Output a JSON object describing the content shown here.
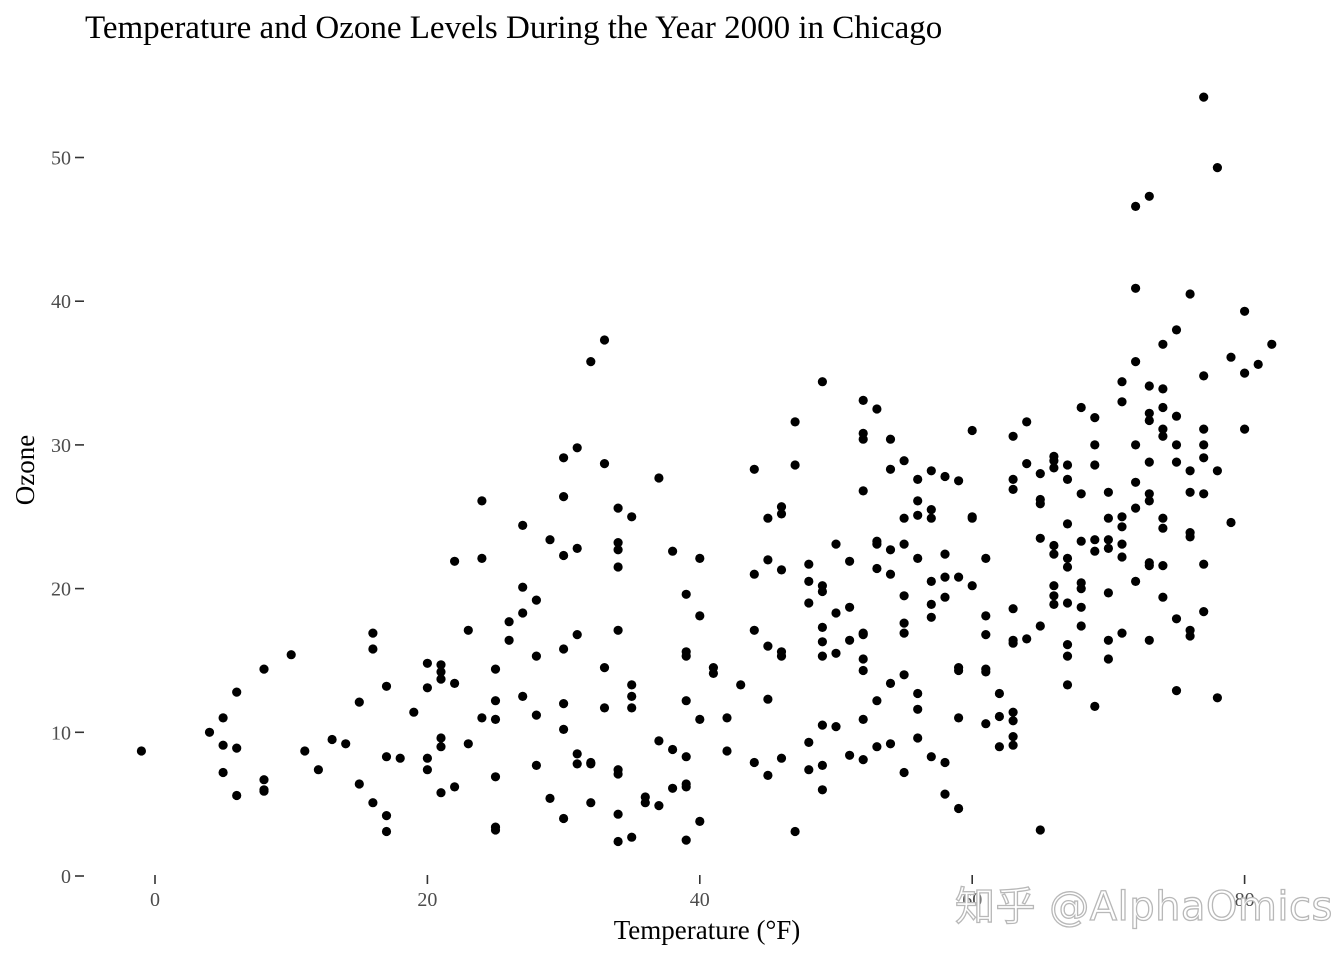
{
  "chart_data": {
    "type": "scatter",
    "title": "Temperature and Ozone Levels During the Year 2000 in Chicago",
    "xlabel": "Temperature (°F)",
    "ylabel": "Ozone",
    "xlim": [
      -2,
      83
    ],
    "ylim": [
      0,
      55
    ],
    "x_ticks": [
      0,
      20,
      40,
      60,
      80
    ],
    "x_tick_labels": [
      "0",
      "20",
      "40",
      "60",
      "80"
    ],
    "y_ticks": [
      0,
      10,
      20,
      30,
      40,
      50
    ],
    "y_tick_labels": [
      "0",
      "10",
      "20",
      "30",
      "40",
      "50"
    ],
    "grid": false,
    "point_color": "#000000",
    "points": [
      [
        -1,
        8.7
      ],
      [
        4,
        10.0
      ],
      [
        5,
        11.0
      ],
      [
        5,
        9.1
      ],
      [
        5,
        7.2
      ],
      [
        6,
        12.8
      ],
      [
        6,
        8.9
      ],
      [
        6,
        5.6
      ],
      [
        8,
        14.4
      ],
      [
        8,
        6.7
      ],
      [
        8,
        6.0
      ],
      [
        8,
        5.9
      ],
      [
        10,
        15.4
      ],
      [
        11,
        8.7
      ],
      [
        12,
        7.4
      ],
      [
        13,
        9.5
      ],
      [
        14,
        9.2
      ],
      [
        15,
        12.1
      ],
      [
        15,
        6.4
      ],
      [
        16,
        16.9
      ],
      [
        16,
        15.8
      ],
      [
        16,
        5.1
      ],
      [
        17,
        13.2
      ],
      [
        17,
        8.3
      ],
      [
        17,
        4.2
      ],
      [
        17,
        3.1
      ],
      [
        18,
        8.2
      ],
      [
        19,
        11.4
      ],
      [
        20,
        14.8
      ],
      [
        20,
        13.1
      ],
      [
        20,
        8.2
      ],
      [
        20,
        7.4
      ],
      [
        21,
        14.7
      ],
      [
        21,
        14.2
      ],
      [
        21,
        13.7
      ],
      [
        21,
        9.6
      ],
      [
        21,
        9.0
      ],
      [
        21,
        5.8
      ],
      [
        22,
        21.9
      ],
      [
        22,
        13.4
      ],
      [
        22,
        6.2
      ],
      [
        23,
        17.1
      ],
      [
        23,
        9.2
      ],
      [
        24,
        26.1
      ],
      [
        24,
        22.1
      ],
      [
        24,
        11.0
      ],
      [
        25,
        14.4
      ],
      [
        25,
        12.2
      ],
      [
        25,
        10.9
      ],
      [
        25,
        6.9
      ],
      [
        25,
        3.4
      ],
      [
        25,
        3.2
      ],
      [
        26,
        17.7
      ],
      [
        26,
        16.4
      ],
      [
        27,
        24.4
      ],
      [
        27,
        20.1
      ],
      [
        27,
        18.3
      ],
      [
        27,
        12.5
      ],
      [
        28,
        19.2
      ],
      [
        28,
        15.3
      ],
      [
        28,
        11.2
      ],
      [
        28,
        7.7
      ],
      [
        29,
        23.4
      ],
      [
        29,
        5.4
      ],
      [
        30,
        29.1
      ],
      [
        30,
        26.4
      ],
      [
        30,
        22.3
      ],
      [
        30,
        15.8
      ],
      [
        30,
        12.0
      ],
      [
        30,
        10.2
      ],
      [
        30,
        4.0
      ],
      [
        31,
        29.8
      ],
      [
        31,
        22.8
      ],
      [
        31,
        16.8
      ],
      [
        31,
        8.5
      ],
      [
        31,
        7.8
      ],
      [
        32,
        35.8
      ],
      [
        32,
        7.9
      ],
      [
        32,
        7.8
      ],
      [
        32,
        5.1
      ],
      [
        33,
        37.3
      ],
      [
        33,
        28.7
      ],
      [
        33,
        14.5
      ],
      [
        33,
        11.7
      ],
      [
        34,
        25.6
      ],
      [
        34,
        23.2
      ],
      [
        34,
        22.7
      ],
      [
        34,
        21.5
      ],
      [
        34,
        17.1
      ],
      [
        34,
        7.4
      ],
      [
        34,
        7.1
      ],
      [
        34,
        4.3
      ],
      [
        34,
        2.4
      ],
      [
        35,
        25.0
      ],
      [
        35,
        13.3
      ],
      [
        35,
        12.5
      ],
      [
        35,
        11.7
      ],
      [
        35,
        2.7
      ],
      [
        36,
        5.5
      ],
      [
        36,
        5.1
      ],
      [
        37,
        27.7
      ],
      [
        37,
        9.4
      ],
      [
        37,
        4.9
      ],
      [
        38,
        22.6
      ],
      [
        38,
        8.8
      ],
      [
        38,
        6.1
      ],
      [
        39,
        19.6
      ],
      [
        39,
        15.6
      ],
      [
        39,
        15.3
      ],
      [
        39,
        12.2
      ],
      [
        39,
        8.3
      ],
      [
        39,
        6.4
      ],
      [
        39,
        6.2
      ],
      [
        39,
        2.5
      ],
      [
        40,
        22.1
      ],
      [
        40,
        18.1
      ],
      [
        40,
        10.9
      ],
      [
        40,
        3.8
      ],
      [
        41,
        14.5
      ],
      [
        41,
        14.1
      ],
      [
        42,
        11.0
      ],
      [
        42,
        8.7
      ],
      [
        43,
        13.3
      ],
      [
        44,
        28.3
      ],
      [
        44,
        21.0
      ],
      [
        44,
        17.1
      ],
      [
        44,
        7.9
      ],
      [
        45,
        24.9
      ],
      [
        45,
        22.0
      ],
      [
        45,
        16.0
      ],
      [
        45,
        12.3
      ],
      [
        45,
        7.0
      ],
      [
        46,
        25.7
      ],
      [
        46,
        25.2
      ],
      [
        46,
        21.3
      ],
      [
        46,
        15.6
      ],
      [
        46,
        15.3
      ],
      [
        46,
        8.2
      ],
      [
        47,
        31.6
      ],
      [
        47,
        28.6
      ],
      [
        47,
        3.1
      ],
      [
        48,
        21.7
      ],
      [
        48,
        20.5
      ],
      [
        48,
        19.0
      ],
      [
        48,
        9.3
      ],
      [
        48,
        7.4
      ],
      [
        49,
        34.4
      ],
      [
        49,
        20.2
      ],
      [
        49,
        19.8
      ],
      [
        49,
        17.3
      ],
      [
        49,
        16.3
      ],
      [
        49,
        15.3
      ],
      [
        49,
        10.5
      ],
      [
        49,
        7.7
      ],
      [
        49,
        6.0
      ],
      [
        50,
        23.1
      ],
      [
        50,
        18.3
      ],
      [
        50,
        15.5
      ],
      [
        50,
        10.4
      ],
      [
        51,
        21.9
      ],
      [
        51,
        18.7
      ],
      [
        51,
        16.4
      ],
      [
        51,
        8.4
      ],
      [
        52,
        33.1
      ],
      [
        52,
        30.8
      ],
      [
        52,
        30.4
      ],
      [
        52,
        26.8
      ],
      [
        52,
        16.9
      ],
      [
        52,
        16.8
      ],
      [
        52,
        15.1
      ],
      [
        52,
        14.3
      ],
      [
        52,
        10.9
      ],
      [
        52,
        8.1
      ],
      [
        53,
        32.5
      ],
      [
        53,
        23.3
      ],
      [
        53,
        23.1
      ],
      [
        53,
        21.4
      ],
      [
        53,
        12.2
      ],
      [
        53,
        9.0
      ],
      [
        54,
        30.4
      ],
      [
        54,
        28.3
      ],
      [
        54,
        22.7
      ],
      [
        54,
        21.0
      ],
      [
        54,
        13.4
      ],
      [
        54,
        9.2
      ],
      [
        55,
        28.9
      ],
      [
        55,
        24.9
      ],
      [
        55,
        23.1
      ],
      [
        55,
        19.5
      ],
      [
        55,
        17.6
      ],
      [
        55,
        16.9
      ],
      [
        55,
        14.0
      ],
      [
        55,
        7.2
      ],
      [
        56,
        27.6
      ],
      [
        56,
        26.1
      ],
      [
        56,
        25.1
      ],
      [
        56,
        22.1
      ],
      [
        56,
        12.7
      ],
      [
        56,
        11.6
      ],
      [
        56,
        9.6
      ],
      [
        57,
        28.2
      ],
      [
        57,
        25.5
      ],
      [
        57,
        24.9
      ],
      [
        57,
        20.5
      ],
      [
        57,
        18.9
      ],
      [
        57,
        18.0
      ],
      [
        57,
        8.3
      ],
      [
        58,
        27.8
      ],
      [
        58,
        22.4
      ],
      [
        58,
        20.8
      ],
      [
        58,
        19.4
      ],
      [
        58,
        7.9
      ],
      [
        58,
        5.7
      ],
      [
        59,
        27.5
      ],
      [
        59,
        20.8
      ],
      [
        59,
        14.5
      ],
      [
        59,
        14.3
      ],
      [
        59,
        11.0
      ],
      [
        59,
        4.7
      ],
      [
        60,
        31.0
      ],
      [
        60,
        25.0
      ],
      [
        60,
        24.9
      ],
      [
        60,
        20.2
      ],
      [
        61,
        22.1
      ],
      [
        61,
        18.1
      ],
      [
        61,
        16.8
      ],
      [
        61,
        14.4
      ],
      [
        61,
        14.2
      ],
      [
        61,
        10.6
      ],
      [
        62,
        12.7
      ],
      [
        62,
        11.1
      ],
      [
        62,
        9.0
      ],
      [
        63,
        30.6
      ],
      [
        63,
        27.6
      ],
      [
        63,
        26.9
      ],
      [
        63,
        18.6
      ],
      [
        63,
        16.4
      ],
      [
        63,
        16.2
      ],
      [
        63,
        11.4
      ],
      [
        63,
        10.8
      ],
      [
        63,
        9.7
      ],
      [
        63,
        9.1
      ],
      [
        64,
        31.6
      ],
      [
        64,
        28.7
      ],
      [
        64,
        16.5
      ],
      [
        65,
        28.0
      ],
      [
        65,
        26.2
      ],
      [
        65,
        25.9
      ],
      [
        65,
        23.5
      ],
      [
        65,
        17.4
      ],
      [
        65,
        3.2
      ],
      [
        66,
        29.2
      ],
      [
        66,
        28.9
      ],
      [
        66,
        28.4
      ],
      [
        66,
        23.0
      ],
      [
        66,
        22.4
      ],
      [
        66,
        20.2
      ],
      [
        66,
        19.5
      ],
      [
        66,
        18.9
      ],
      [
        67,
        28.6
      ],
      [
        67,
        27.6
      ],
      [
        67,
        24.5
      ],
      [
        67,
        22.1
      ],
      [
        67,
        21.5
      ],
      [
        67,
        19.0
      ],
      [
        67,
        16.1
      ],
      [
        67,
        15.3
      ],
      [
        67,
        13.3
      ],
      [
        68,
        32.6
      ],
      [
        68,
        26.6
      ],
      [
        68,
        23.3
      ],
      [
        68,
        20.4
      ],
      [
        68,
        20.0
      ],
      [
        68,
        18.7
      ],
      [
        68,
        17.4
      ],
      [
        69,
        31.9
      ],
      [
        69,
        30.0
      ],
      [
        69,
        28.6
      ],
      [
        69,
        23.4
      ],
      [
        69,
        22.6
      ],
      [
        69,
        11.8
      ],
      [
        70,
        26.7
      ],
      [
        70,
        24.9
      ],
      [
        70,
        23.4
      ],
      [
        70,
        22.8
      ],
      [
        70,
        19.7
      ],
      [
        70,
        16.4
      ],
      [
        70,
        15.1
      ],
      [
        71,
        34.4
      ],
      [
        71,
        33.0
      ],
      [
        71,
        25.0
      ],
      [
        71,
        24.3
      ],
      [
        71,
        23.1
      ],
      [
        71,
        22.2
      ],
      [
        71,
        16.9
      ],
      [
        72,
        46.6
      ],
      [
        72,
        40.9
      ],
      [
        72,
        35.8
      ],
      [
        72,
        30.0
      ],
      [
        72,
        27.4
      ],
      [
        72,
        25.6
      ],
      [
        72,
        20.5
      ],
      [
        73,
        47.3
      ],
      [
        73,
        34.1
      ],
      [
        73,
        32.2
      ],
      [
        73,
        31.7
      ],
      [
        73,
        28.8
      ],
      [
        73,
        26.6
      ],
      [
        73,
        26.1
      ],
      [
        73,
        21.8
      ],
      [
        73,
        21.6
      ],
      [
        73,
        16.4
      ],
      [
        74,
        37.0
      ],
      [
        74,
        33.9
      ],
      [
        74,
        32.6
      ],
      [
        74,
        31.1
      ],
      [
        74,
        30.6
      ],
      [
        74,
        24.9
      ],
      [
        74,
        24.2
      ],
      [
        74,
        21.6
      ],
      [
        74,
        19.4
      ],
      [
        75,
        38.0
      ],
      [
        75,
        32.0
      ],
      [
        75,
        30.0
      ],
      [
        75,
        28.8
      ],
      [
        75,
        17.9
      ],
      [
        75,
        12.9
      ],
      [
        76,
        40.5
      ],
      [
        76,
        28.2
      ],
      [
        76,
        26.7
      ],
      [
        76,
        23.9
      ],
      [
        76,
        23.6
      ],
      [
        76,
        17.1
      ],
      [
        76,
        16.7
      ],
      [
        77,
        54.2
      ],
      [
        77,
        34.8
      ],
      [
        77,
        31.1
      ],
      [
        77,
        30.0
      ],
      [
        77,
        29.1
      ],
      [
        77,
        26.6
      ],
      [
        77,
        21.7
      ],
      [
        77,
        18.4
      ],
      [
        78,
        49.3
      ],
      [
        78,
        28.2
      ],
      [
        78,
        12.4
      ],
      [
        79,
        36.1
      ],
      [
        79,
        24.6
      ],
      [
        80,
        39.3
      ],
      [
        80,
        35.0
      ],
      [
        80,
        31.1
      ],
      [
        81,
        35.6
      ],
      [
        82,
        37.0
      ]
    ]
  },
  "watermark": {
    "text": "知乎 @AlphaOmics"
  }
}
